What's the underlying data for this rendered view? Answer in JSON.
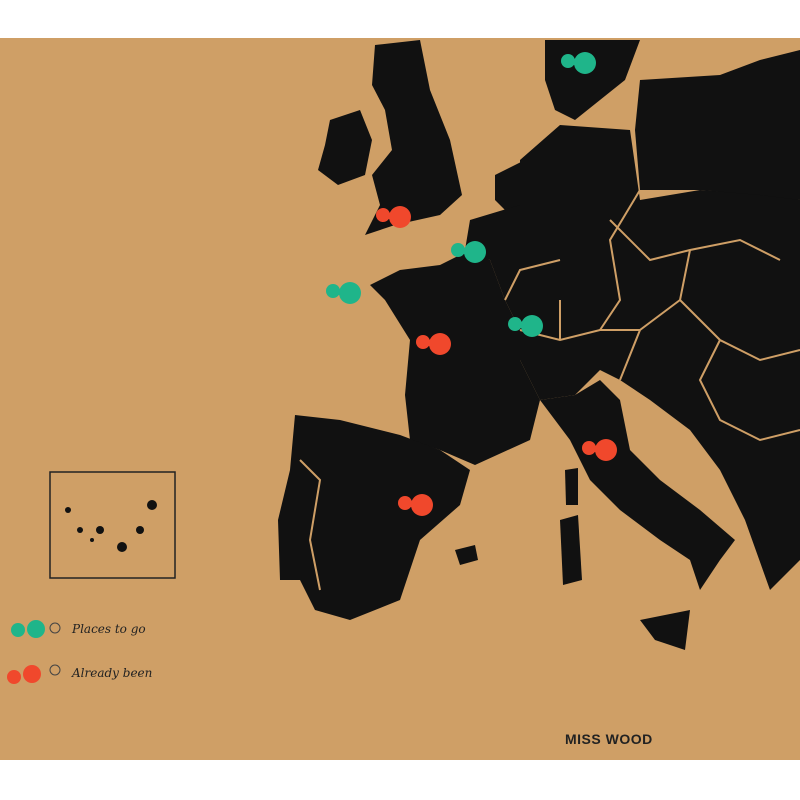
{
  "colors": {
    "cork": "#cf9f66",
    "land": "#111111",
    "places_to_go": "#1fb58a",
    "already_been": "#f0482c"
  },
  "legend": {
    "places_to_go": "Places to go",
    "already_been": "Already been"
  },
  "brand": "MISS WOOD",
  "pins": [
    {
      "type": "places_to_go",
      "location": "Scandinavia"
    },
    {
      "type": "already_been",
      "location": "England"
    },
    {
      "type": "places_to_go",
      "location": "Belgium"
    },
    {
      "type": "places_to_go",
      "location": "Brittany"
    },
    {
      "type": "already_been",
      "location": "France"
    },
    {
      "type": "places_to_go",
      "location": "Switzerland"
    },
    {
      "type": "already_been",
      "location": "Italy"
    },
    {
      "type": "already_been",
      "location": "Spain"
    }
  ]
}
